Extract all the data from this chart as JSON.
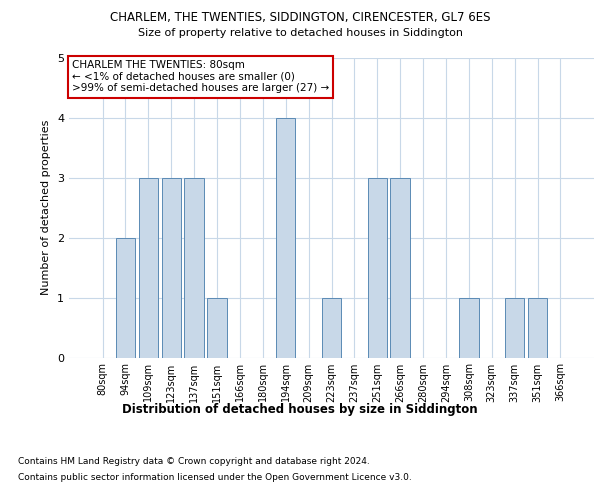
{
  "title1": "CHARLEM, THE TWENTIES, SIDDINGTON, CIRENCESTER, GL7 6ES",
  "title2": "Size of property relative to detached houses in Siddington",
  "xlabel": "Distribution of detached houses by size in Siddington",
  "ylabel": "Number of detached properties",
  "categories": [
    "80sqm",
    "94sqm",
    "109sqm",
    "123sqm",
    "137sqm",
    "151sqm",
    "166sqm",
    "180sqm",
    "194sqm",
    "209sqm",
    "223sqm",
    "237sqm",
    "251sqm",
    "266sqm",
    "280sqm",
    "294sqm",
    "308sqm",
    "323sqm",
    "337sqm",
    "351sqm",
    "366sqm"
  ],
  "values": [
    0,
    2,
    3,
    3,
    3,
    1,
    0,
    0,
    4,
    0,
    1,
    0,
    3,
    3,
    0,
    0,
    1,
    0,
    1,
    1,
    0
  ],
  "bar_color": "#c8d8e8",
  "bar_edge_color": "#5a8ab5",
  "annotation_box_color": "#ffffff",
  "annotation_box_edge": "#cc0000",
  "annotation_lines": [
    "CHARLEM THE TWENTIES: 80sqm",
    "← <1% of detached houses are smaller (0)",
    ">99% of semi-detached houses are larger (27) →"
  ],
  "ylim": [
    0,
    5
  ],
  "yticks": [
    0,
    1,
    2,
    3,
    4,
    5
  ],
  "footnote1": "Contains HM Land Registry data © Crown copyright and database right 2024.",
  "footnote2": "Contains public sector information licensed under the Open Government Licence v3.0.",
  "bg_color": "#ffffff",
  "grid_color": "#c8d8e8"
}
